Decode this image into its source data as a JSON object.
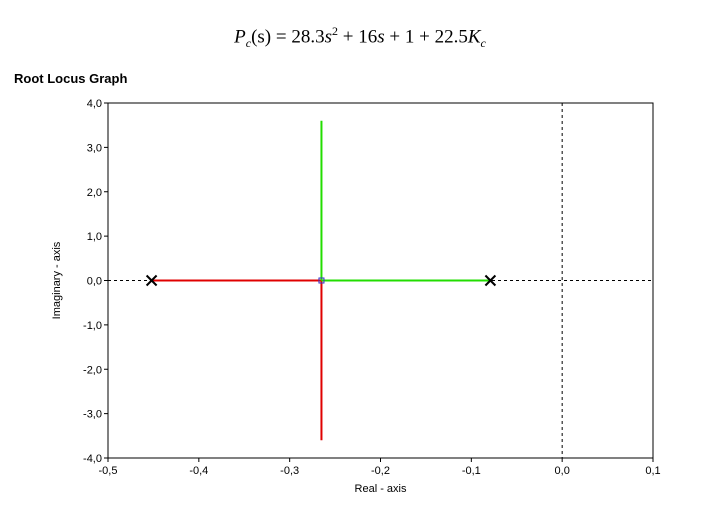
{
  "equation": {
    "lhs_var": "P",
    "lhs_sub": "c",
    "lhs_arg": "(s)",
    "eq": " = 28.3",
    "s1": "s",
    "sq": "2",
    "mid": " + 16",
    "s2": "s",
    "plus": " + 1 + 22.5",
    "k": "K",
    "k_sub": "c"
  },
  "chart_data": {
    "type": "line",
    "title": "Root Locus Graph",
    "xlabel": "Real - axis",
    "ylabel": "Imaginary - axis",
    "xlim": [
      -0.5,
      0.1
    ],
    "ylim": [
      -4.0,
      4.0
    ],
    "xticks": [
      -0.5,
      -0.4,
      -0.3,
      -0.2,
      -0.1,
      0.0,
      0.1
    ],
    "yticks": [
      -4.0,
      -3.0,
      -2.0,
      -1.0,
      0.0,
      1.0,
      2.0,
      3.0,
      4.0
    ],
    "xtick_labels": [
      "-0,5",
      "-0,4",
      "-0,3",
      "-0,2",
      "-0,1",
      "0,0",
      "0,1"
    ],
    "ytick_labels": [
      "-4,0",
      "-3,0",
      "-2,0",
      "-1,0",
      "0,0",
      "1,0",
      "2,0",
      "3,0",
      "4,0"
    ],
    "grid": false,
    "reference_lines": {
      "real_axis_y": 0.0,
      "imag_axis_x": 0.0,
      "style": "dashed"
    },
    "series": [
      {
        "color": "#e00000",
        "x": [
          -0.452,
          -0.265,
          -0.265,
          -0.265
        ],
        "y": [
          0.0,
          0.0,
          0.0,
          -3.6
        ],
        "segments": [
          [
            0,
            1
          ],
          [
            2,
            3
          ]
        ]
      },
      {
        "color": "#22dd00",
        "x": [
          -0.079,
          -0.265,
          -0.265,
          -0.265
        ],
        "y": [
          0.0,
          0.0,
          0.0,
          3.6
        ],
        "segments": [
          [
            0,
            1
          ],
          [
            2,
            3
          ]
        ]
      }
    ],
    "poles": [
      {
        "x": -0.452,
        "y": 0.0
      },
      {
        "x": -0.079,
        "y": 0.0
      }
    ],
    "breakaway": {
      "x": -0.265,
      "y": 0.0,
      "color": "#3333cc"
    }
  }
}
